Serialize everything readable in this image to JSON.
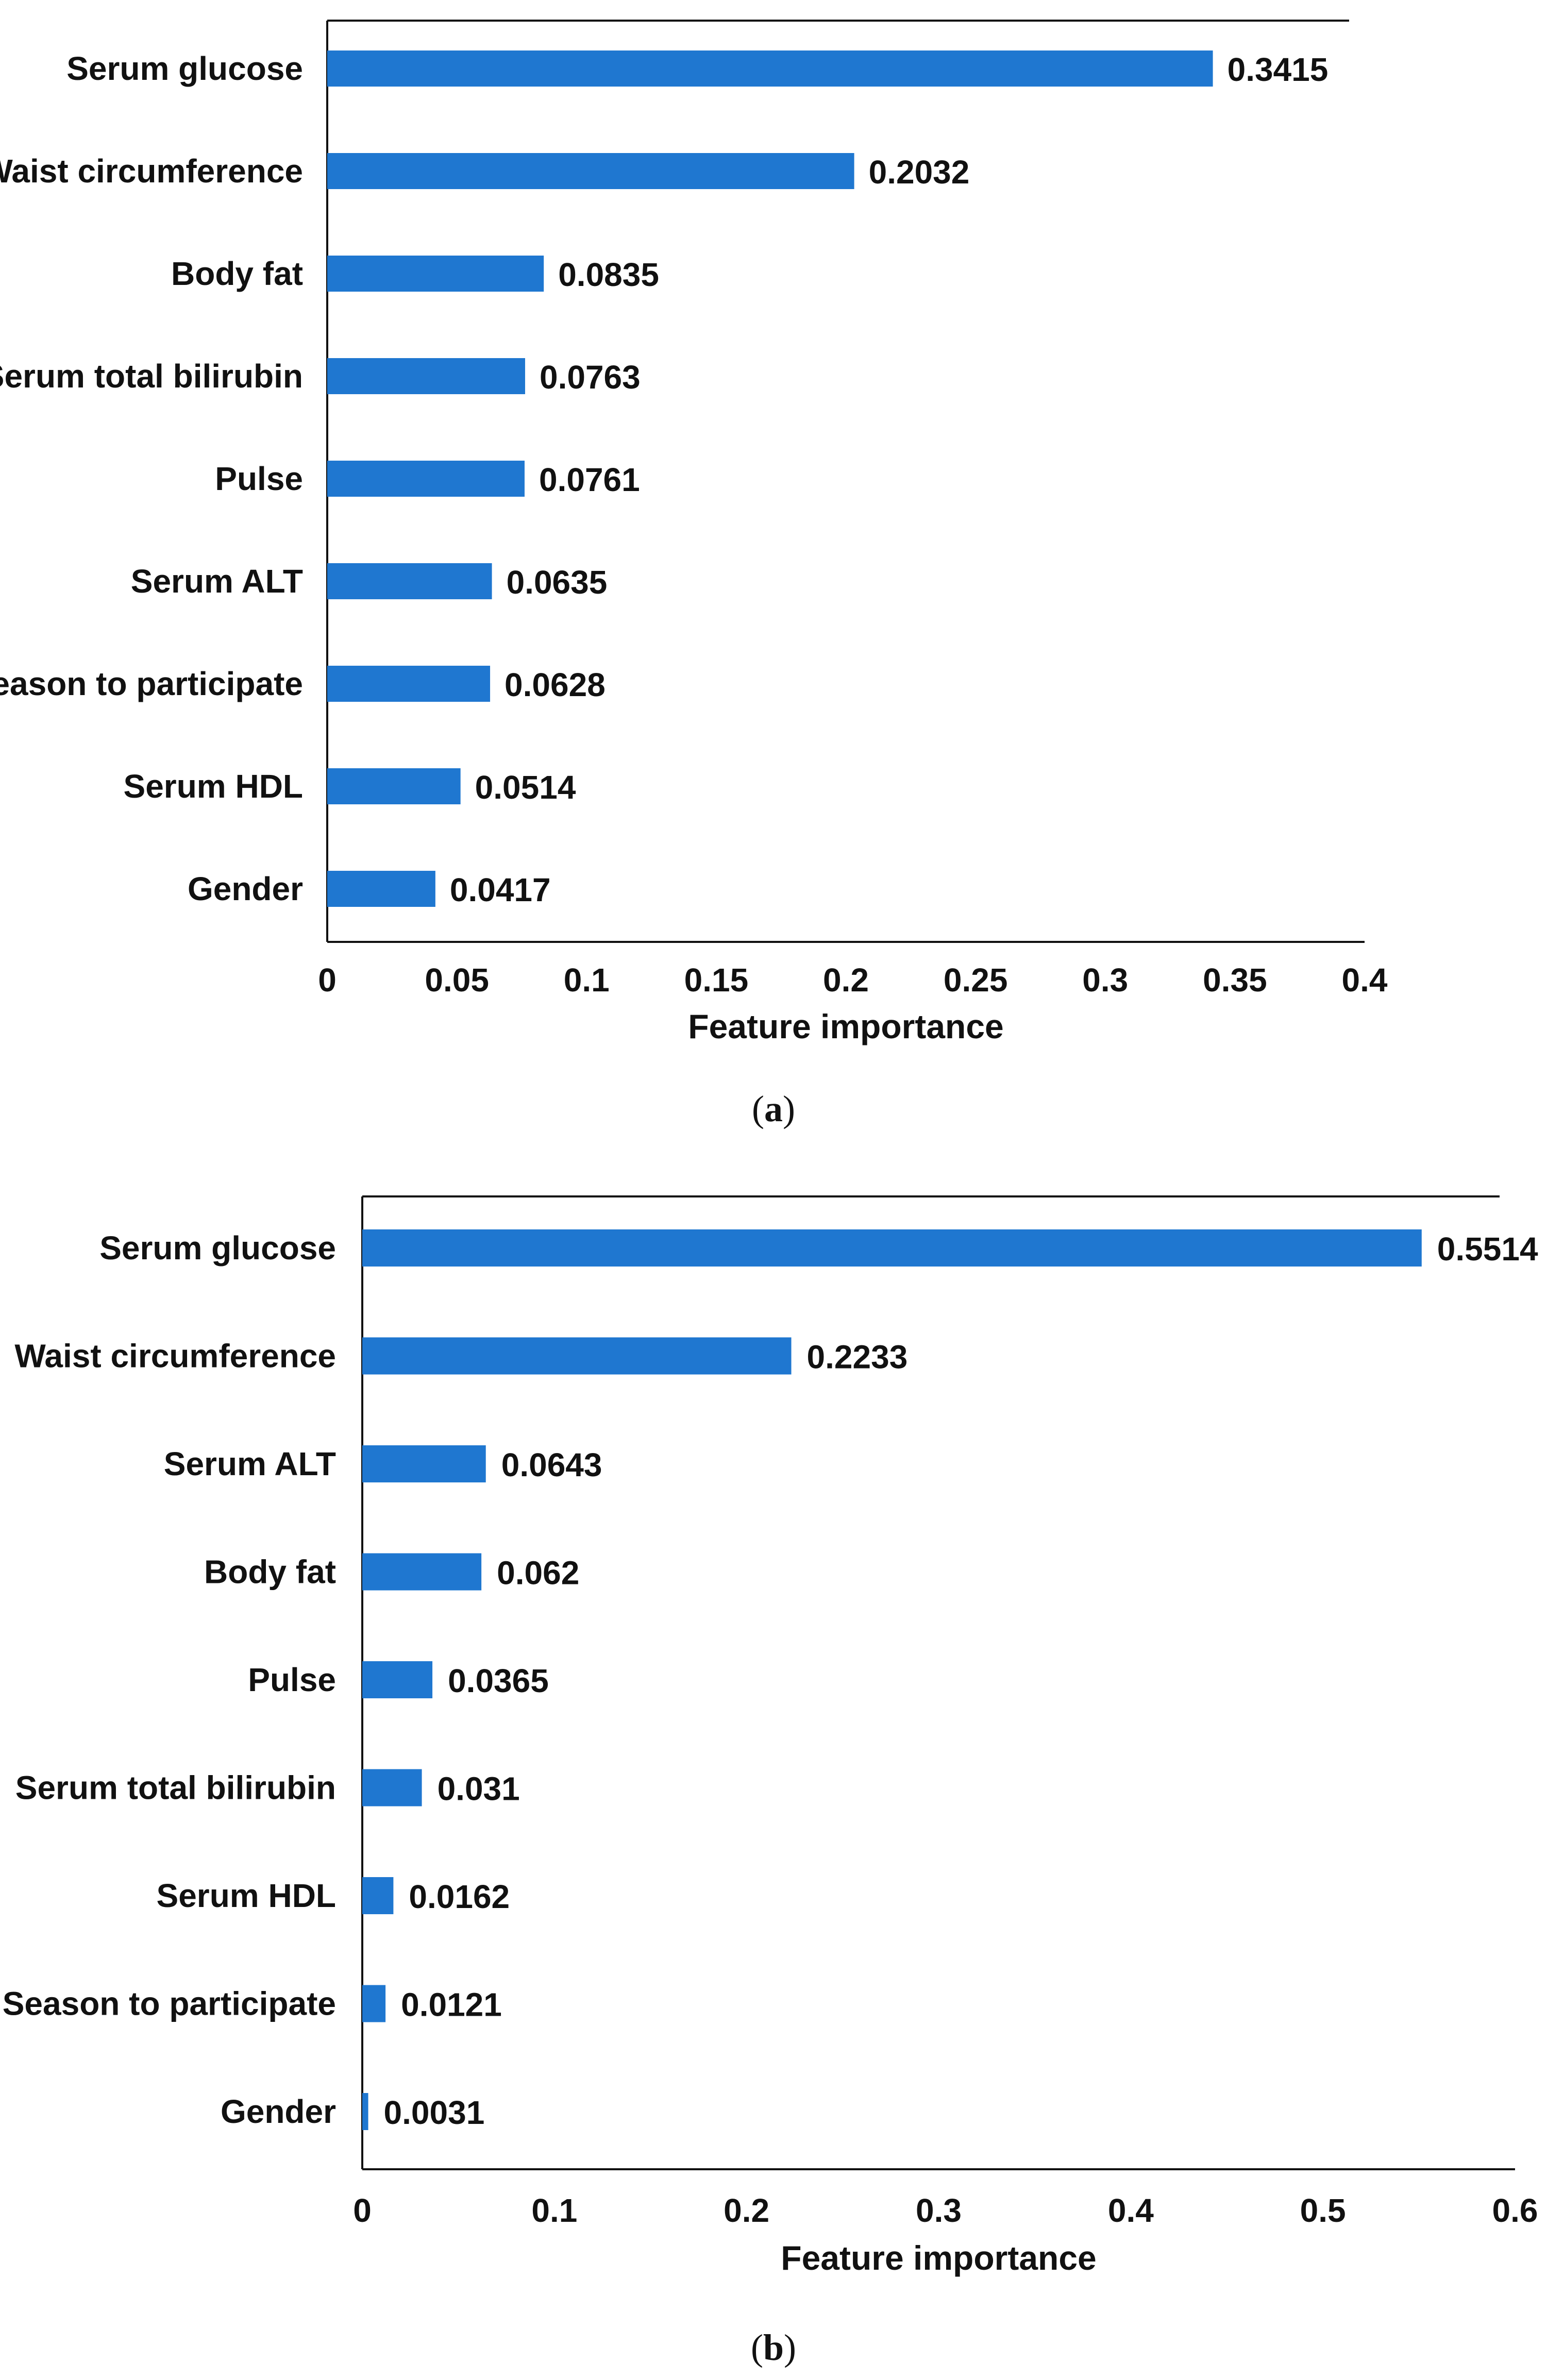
{
  "chart_data": [
    {
      "type": "bar",
      "orientation": "horizontal",
      "panel_label": "a",
      "xlabel": "Feature importance",
      "ylabel": "",
      "xlim": [
        0,
        0.4
      ],
      "xticks": [
        "0",
        "0.05",
        "0.1",
        "0.15",
        "0.2",
        "0.25",
        "0.3",
        "0.35",
        "0.4"
      ],
      "categories": [
        "Serum glucose",
        "Waist circumference",
        "Body fat",
        "Serum total bilirubin",
        "Pulse",
        "Serum ALT",
        "Season to participate",
        "Serum HDL",
        "Gender"
      ],
      "values": [
        0.3415,
        0.2032,
        0.0835,
        0.0763,
        0.0761,
        0.0635,
        0.0628,
        0.0514,
        0.0417
      ],
      "value_labels": [
        "0.3415",
        "0.2032",
        "0.0835",
        "0.0763",
        "0.0761",
        "0.0635",
        "0.0628",
        "0.0514",
        "0.0417"
      ],
      "bar_color": "#1f77d0",
      "grid": false
    },
    {
      "type": "bar",
      "orientation": "horizontal",
      "panel_label": "b",
      "xlabel": "Feature importance",
      "ylabel": "",
      "xlim": [
        0,
        0.6
      ],
      "xticks": [
        "0",
        "0.1",
        "0.2",
        "0.3",
        "0.4",
        "0.5",
        "0.6"
      ],
      "categories": [
        "Serum glucose",
        "Waist circumference",
        "Serum ALT",
        "Body fat",
        "Pulse",
        "Serum total bilirubin",
        "Serum HDL",
        "Season to participate",
        "Gender"
      ],
      "values": [
        0.5514,
        0.2233,
        0.0643,
        0.062,
        0.0365,
        0.031,
        0.0162,
        0.0121,
        0.0031
      ],
      "value_labels": [
        "0.5514",
        "0.2233",
        "0.0643",
        "0.062",
        "0.0365",
        "0.031",
        "0.0162",
        "0.0121",
        "0.0031"
      ],
      "bar_color": "#1f77d0",
      "grid": false
    }
  ]
}
